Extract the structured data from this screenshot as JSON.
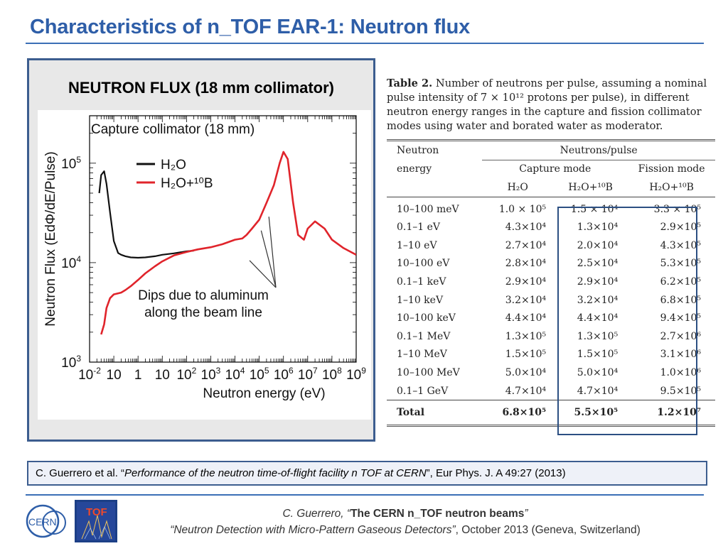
{
  "slide": {
    "title": "Characteristics of n_TOF EAR-1: Neutron flux",
    "panel_heading": "NEUTRON FLUX (18 mm collimator)"
  },
  "chart_data": {
    "type": "line",
    "title": "Capture collimator (18 mm)",
    "xlabel": "Neutron energy (eV)",
    "ylabel": "Neutron Flux (EdΦ/dE/Pulse)",
    "x_scale": "log",
    "y_scale": "log",
    "xlim": [
      0.01,
      1000000000
    ],
    "ylim": [
      1000,
      300000
    ],
    "x_ticks": [
      {
        "base": "10",
        "exp": "-2"
      },
      {
        "base": "10",
        "exp": ""
      },
      {
        "base": "1",
        "exp": ""
      },
      {
        "base": "10",
        "exp": ""
      },
      {
        "base": "10",
        "exp": "2"
      },
      {
        "base": "10",
        "exp": "3"
      },
      {
        "base": "10",
        "exp": "4"
      },
      {
        "base": "10",
        "exp": "5"
      },
      {
        "base": "10",
        "exp": "6"
      },
      {
        "base": "10",
        "exp": "7"
      },
      {
        "base": "10",
        "exp": "8"
      },
      {
        "base": "10",
        "exp": "9"
      }
    ],
    "y_ticks": [
      {
        "base": "10",
        "exp": "5",
        "value": 100000
      },
      {
        "base": "10",
        "exp": "4",
        "value": 10000
      },
      {
        "base": "10",
        "exp": "3",
        "value": 1000
      }
    ],
    "series": [
      {
        "name": "H₂O",
        "color": "#111111",
        "x": [
          0.025,
          0.03,
          0.04,
          0.05,
          0.07,
          0.1,
          0.15,
          0.2,
          0.3,
          0.5,
          1,
          2,
          5,
          10,
          30,
          100,
          200
        ],
        "y": [
          50000,
          76000,
          83000,
          62000,
          32000,
          16500,
          12500,
          12000,
          11600,
          11300,
          11200,
          11300,
          11600,
          12000,
          12400,
          13000,
          13200
        ]
      },
      {
        "name": "H₂O+¹⁰B",
        "color": "#e0242b",
        "x": [
          0.03,
          0.04,
          0.05,
          0.07,
          0.1,
          0.2,
          0.3,
          0.5,
          1,
          2,
          5,
          10,
          30,
          100,
          300,
          1000,
          3000,
          10000,
          20000,
          30000,
          50000,
          100000,
          200000,
          400000,
          700000,
          1000000,
          1500000,
          2500000,
          4000000,
          7000000,
          10000000,
          20000000,
          50000000,
          100000000,
          300000000,
          1000000000
        ],
        "y": [
          1900,
          2400,
          3500,
          4400,
          4800,
          5000,
          5300,
          5800,
          6700,
          7800,
          9200,
          10300,
          11800,
          12800,
          13600,
          14300,
          15300,
          17000,
          17500,
          19000,
          22000,
          27000,
          40000,
          60000,
          100000,
          130000,
          110000,
          40000,
          19000,
          17000,
          22000,
          26000,
          22000,
          17000,
          14000,
          12000
        ]
      }
    ],
    "annotation": "Dips due to aluminum along the beam line"
  },
  "table": {
    "caption_label": "Table 2.",
    "caption_text": "Number of neutrons per pulse, assuming a nominal pulse intensity of 7 × 10¹² protons per pulse), in different neutron energy ranges in the capture and fission collimator modes using water and borated water as moderator.",
    "head_neutron": "Neutron",
    "head_energy": "energy",
    "head_neutrons_pulse": "Neutrons/pulse",
    "head_capture": "Capture mode",
    "head_fission": "Fission mode",
    "col_h2o": "H₂O",
    "col_h2o_b": "H₂O+¹⁰B",
    "col_h2o_b_fission": "H₂O+¹⁰B",
    "rows": [
      [
        "10–100 meV",
        "1.0 × 10⁵",
        "1.5 × 10⁴",
        "3.3 × 10⁵"
      ],
      [
        "0.1–1 eV",
        "4.3×10⁴",
        "1.3×10⁴",
        "2.9×10⁵"
      ],
      [
        "1–10 eV",
        "2.7×10⁴",
        "2.0×10⁴",
        "4.3×10⁵"
      ],
      [
        "10–100 eV",
        "2.8×10⁴",
        "2.5×10⁴",
        "5.3×10⁵"
      ],
      [
        "0.1–1 keV",
        "2.9×10⁴",
        "2.9×10⁴",
        "6.2×10⁵"
      ],
      [
        "1–10 keV",
        "3.2×10⁴",
        "3.2×10⁴",
        "6.8×10⁵"
      ],
      [
        "10–100 keV",
        "4.4×10⁴",
        "4.4×10⁴",
        "9.4×10⁵"
      ],
      [
        "0.1–1 MeV",
        "1.3×10⁵",
        "1.3×10⁵",
        "2.7×10⁶"
      ],
      [
        "1–10 MeV",
        "1.5×10⁵",
        "1.5×10⁵",
        "3.1×10⁶"
      ],
      [
        "10–100 MeV",
        "5.0×10⁴",
        "5.0×10⁴",
        "1.0×10⁶"
      ],
      [
        "0.1–1 GeV",
        "4.7×10⁴",
        "4.7×10⁴",
        "9.5×10⁵"
      ]
    ],
    "total": [
      "Total",
      "6.8×10⁵",
      "5.5×10⁵",
      "1.2×10⁷"
    ]
  },
  "reference": {
    "prefix": "C. Guerrero et al. “",
    "title": "Performance of the neutron time-of-flight facility n TOF at CERN",
    "suffix": "”, Eur Phys. J. A 49:27 (2013)"
  },
  "footer": {
    "author": "C. Guerrero, “",
    "talk": "The CERN n_TOF neutron beams",
    "talk_close": "”",
    "event": "“Neutron Detection with Micro-Pattern Gaseous Detectors”",
    "date_place": ", October 2013 (Geneva, Switzerland)"
  },
  "logos": {
    "cern": "CERN",
    "tof": "TOF"
  }
}
